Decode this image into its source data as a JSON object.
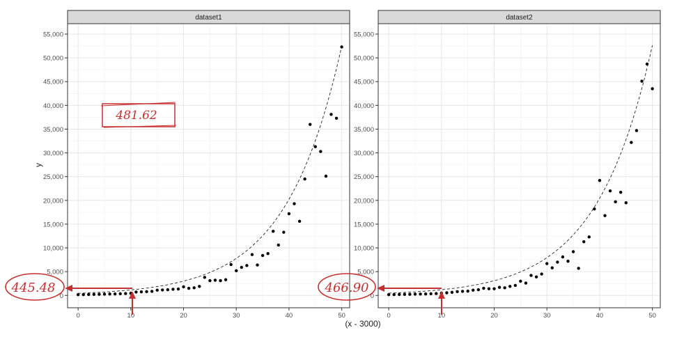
{
  "chart_data": {
    "type": "scatter",
    "xlabel": "(x - 3000)",
    "ylabel": "y",
    "xlim": [
      -2,
      51.5
    ],
    "ylim": [
      -2600,
      57200
    ],
    "x_ticks": [
      0,
      10,
      20,
      30,
      40,
      50
    ],
    "y_ticks": [
      0,
      5000,
      10000,
      15000,
      20000,
      25000,
      30000,
      35000,
      40000,
      45000,
      50000,
      55000
    ],
    "y_tick_labels": [
      "0",
      "5,000",
      "10,000",
      "15,000",
      "20,000",
      "25,000",
      "30,000",
      "35,000",
      "40,000",
      "45,000",
      "50,000",
      "55,000"
    ],
    "grid": true,
    "panels": [
      {
        "strip": "dataset1",
        "fit": {
          "a": 445.48,
          "b": 0.0954
        },
        "points": [
          [
            0,
            150
          ],
          [
            1,
            170
          ],
          [
            2,
            190
          ],
          [
            3,
            210
          ],
          [
            4,
            230
          ],
          [
            5,
            260
          ],
          [
            6,
            290
          ],
          [
            7,
            310
          ],
          [
            8,
            350
          ],
          [
            9,
            390
          ],
          [
            10,
            445
          ],
          [
            11,
            700
          ],
          [
            12,
            750
          ],
          [
            13,
            800
          ],
          [
            14,
            850
          ],
          [
            15,
            1100
          ],
          [
            16,
            1150
          ],
          [
            17,
            1200
          ],
          [
            18,
            1300
          ],
          [
            19,
            1350
          ],
          [
            20,
            1800
          ],
          [
            21,
            1500
          ],
          [
            22,
            1600
          ],
          [
            23,
            1900
          ],
          [
            24,
            3800
          ],
          [
            25,
            3100
          ],
          [
            26,
            3200
          ],
          [
            27,
            3100
          ],
          [
            28,
            3300
          ],
          [
            29,
            6500
          ],
          [
            30,
            5200
          ],
          [
            31,
            5900
          ],
          [
            32,
            6300
          ],
          [
            33,
            8600
          ],
          [
            34,
            6400
          ],
          [
            35,
            8400
          ],
          [
            36,
            8800
          ],
          [
            37,
            13500
          ],
          [
            38,
            10600
          ],
          [
            39,
            13300
          ],
          [
            40,
            17200
          ],
          [
            41,
            19300
          ],
          [
            42,
            15600
          ],
          [
            43,
            24500
          ],
          [
            44,
            36000
          ],
          [
            45,
            31300
          ],
          [
            46,
            30300
          ],
          [
            47,
            25100
          ],
          [
            48,
            38100
          ],
          [
            49,
            37300
          ],
          [
            50,
            52300
          ]
        ]
      },
      {
        "strip": "dataset2",
        "fit": {
          "a": 466.9,
          "b": 0.0945
        },
        "points": [
          [
            0,
            150
          ],
          [
            1,
            170
          ],
          [
            2,
            190
          ],
          [
            3,
            210
          ],
          [
            4,
            230
          ],
          [
            5,
            260
          ],
          [
            6,
            290
          ],
          [
            7,
            310
          ],
          [
            8,
            350
          ],
          [
            9,
            390
          ],
          [
            10,
            467
          ],
          [
            11,
            550
          ],
          [
            12,
            650
          ],
          [
            13,
            800
          ],
          [
            14,
            850
          ],
          [
            15,
            900
          ],
          [
            16,
            1100
          ],
          [
            17,
            1200
          ],
          [
            18,
            1500
          ],
          [
            19,
            1400
          ],
          [
            20,
            1400
          ],
          [
            21,
            1700
          ],
          [
            22,
            1600
          ],
          [
            23,
            1900
          ],
          [
            24,
            2100
          ],
          [
            25,
            3000
          ],
          [
            26,
            2600
          ],
          [
            27,
            4200
          ],
          [
            28,
            3900
          ],
          [
            29,
            4500
          ],
          [
            30,
            6700
          ],
          [
            31,
            5800
          ],
          [
            32,
            7000
          ],
          [
            33,
            8100
          ],
          [
            34,
            7200
          ],
          [
            35,
            9200
          ],
          [
            36,
            5700
          ],
          [
            37,
            11300
          ],
          [
            38,
            12300
          ],
          [
            39,
            18200
          ],
          [
            40,
            24200
          ],
          [
            41,
            16800
          ],
          [
            42,
            22000
          ],
          [
            43,
            19700
          ],
          [
            44,
            21700
          ],
          [
            45,
            19500
          ],
          [
            46,
            32200
          ],
          [
            47,
            34700
          ],
          [
            48,
            45100
          ],
          [
            49,
            48700
          ],
          [
            50,
            43500
          ]
        ]
      }
    ],
    "annotations": [
      {
        "id": "box-label",
        "text": "481.62"
      },
      {
        "id": "left-intercept",
        "text": "445.48"
      },
      {
        "id": "right-intercept",
        "text": "466.90"
      }
    ]
  }
}
